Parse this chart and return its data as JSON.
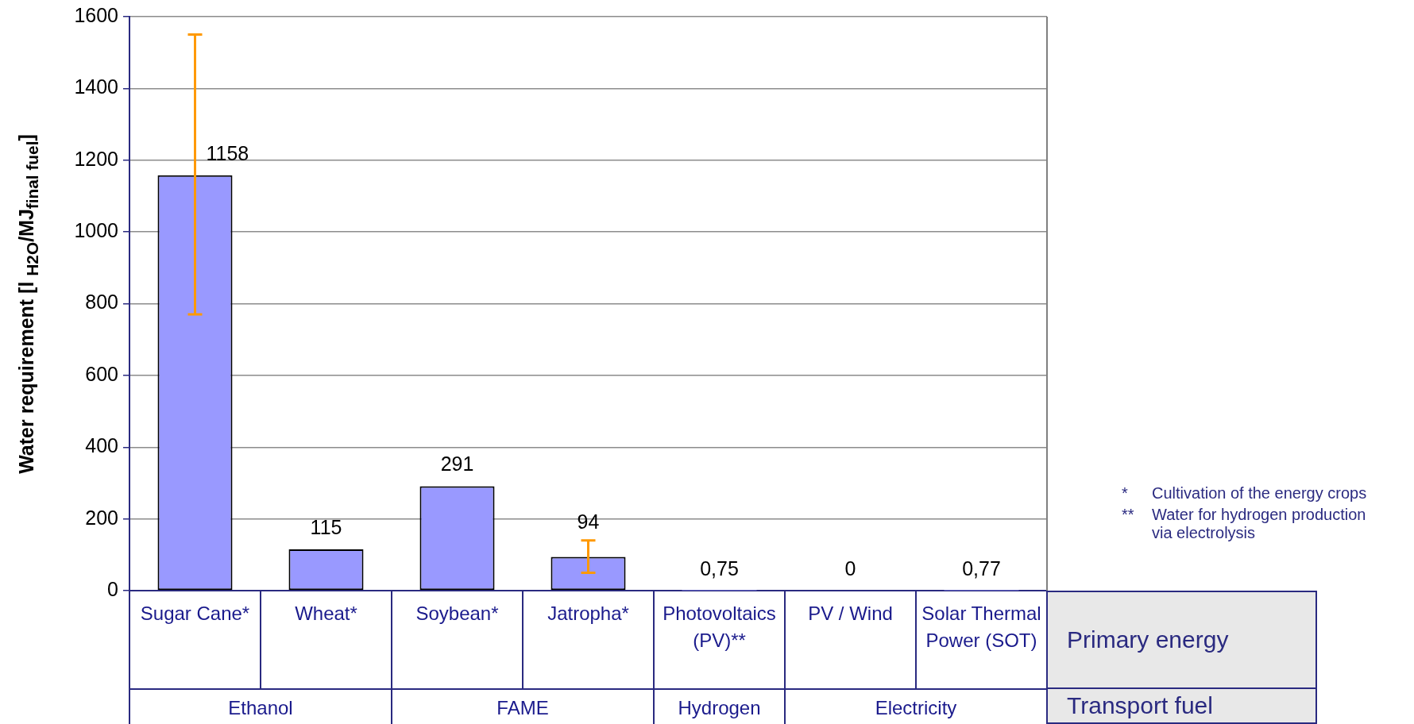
{
  "chart_data": {
    "type": "bar",
    "ylabel": "Water requirement [l $_{H2O}$/MJ$_{final fuel}$]",
    "categories": [
      "Sugar Cane*",
      "Wheat*",
      "Soybean*",
      "Jatropha*",
      "Photovoltaics (PV)**",
      "PV / Wind",
      "Solar Thermal Power (SOT)"
    ],
    "values": [
      1158,
      115,
      291,
      94,
      0.75,
      0,
      0.77
    ],
    "value_labels": [
      "1158",
      "115",
      "291",
      "94",
      "0,75",
      "0",
      "0,77"
    ],
    "errors": [
      [
        770,
        1550
      ],
      null,
      null,
      [
        50,
        140
      ],
      null,
      null,
      null
    ],
    "color": "#9999ff",
    "ylim": [
      0,
      1600
    ],
    "yticks": [
      0,
      200,
      400,
      600,
      800,
      1000,
      1200,
      1400,
      1600
    ],
    "grid": "y",
    "legend": false,
    "annotations": [
      "* Cultivation of the energy crops",
      "** Water for hydrogen production via electrolysis",
      "Primary energy",
      "Transport fuel",
      "Ethanol",
      "FAME",
      "Hydrogen",
      "Electricity"
    ]
  }
}
